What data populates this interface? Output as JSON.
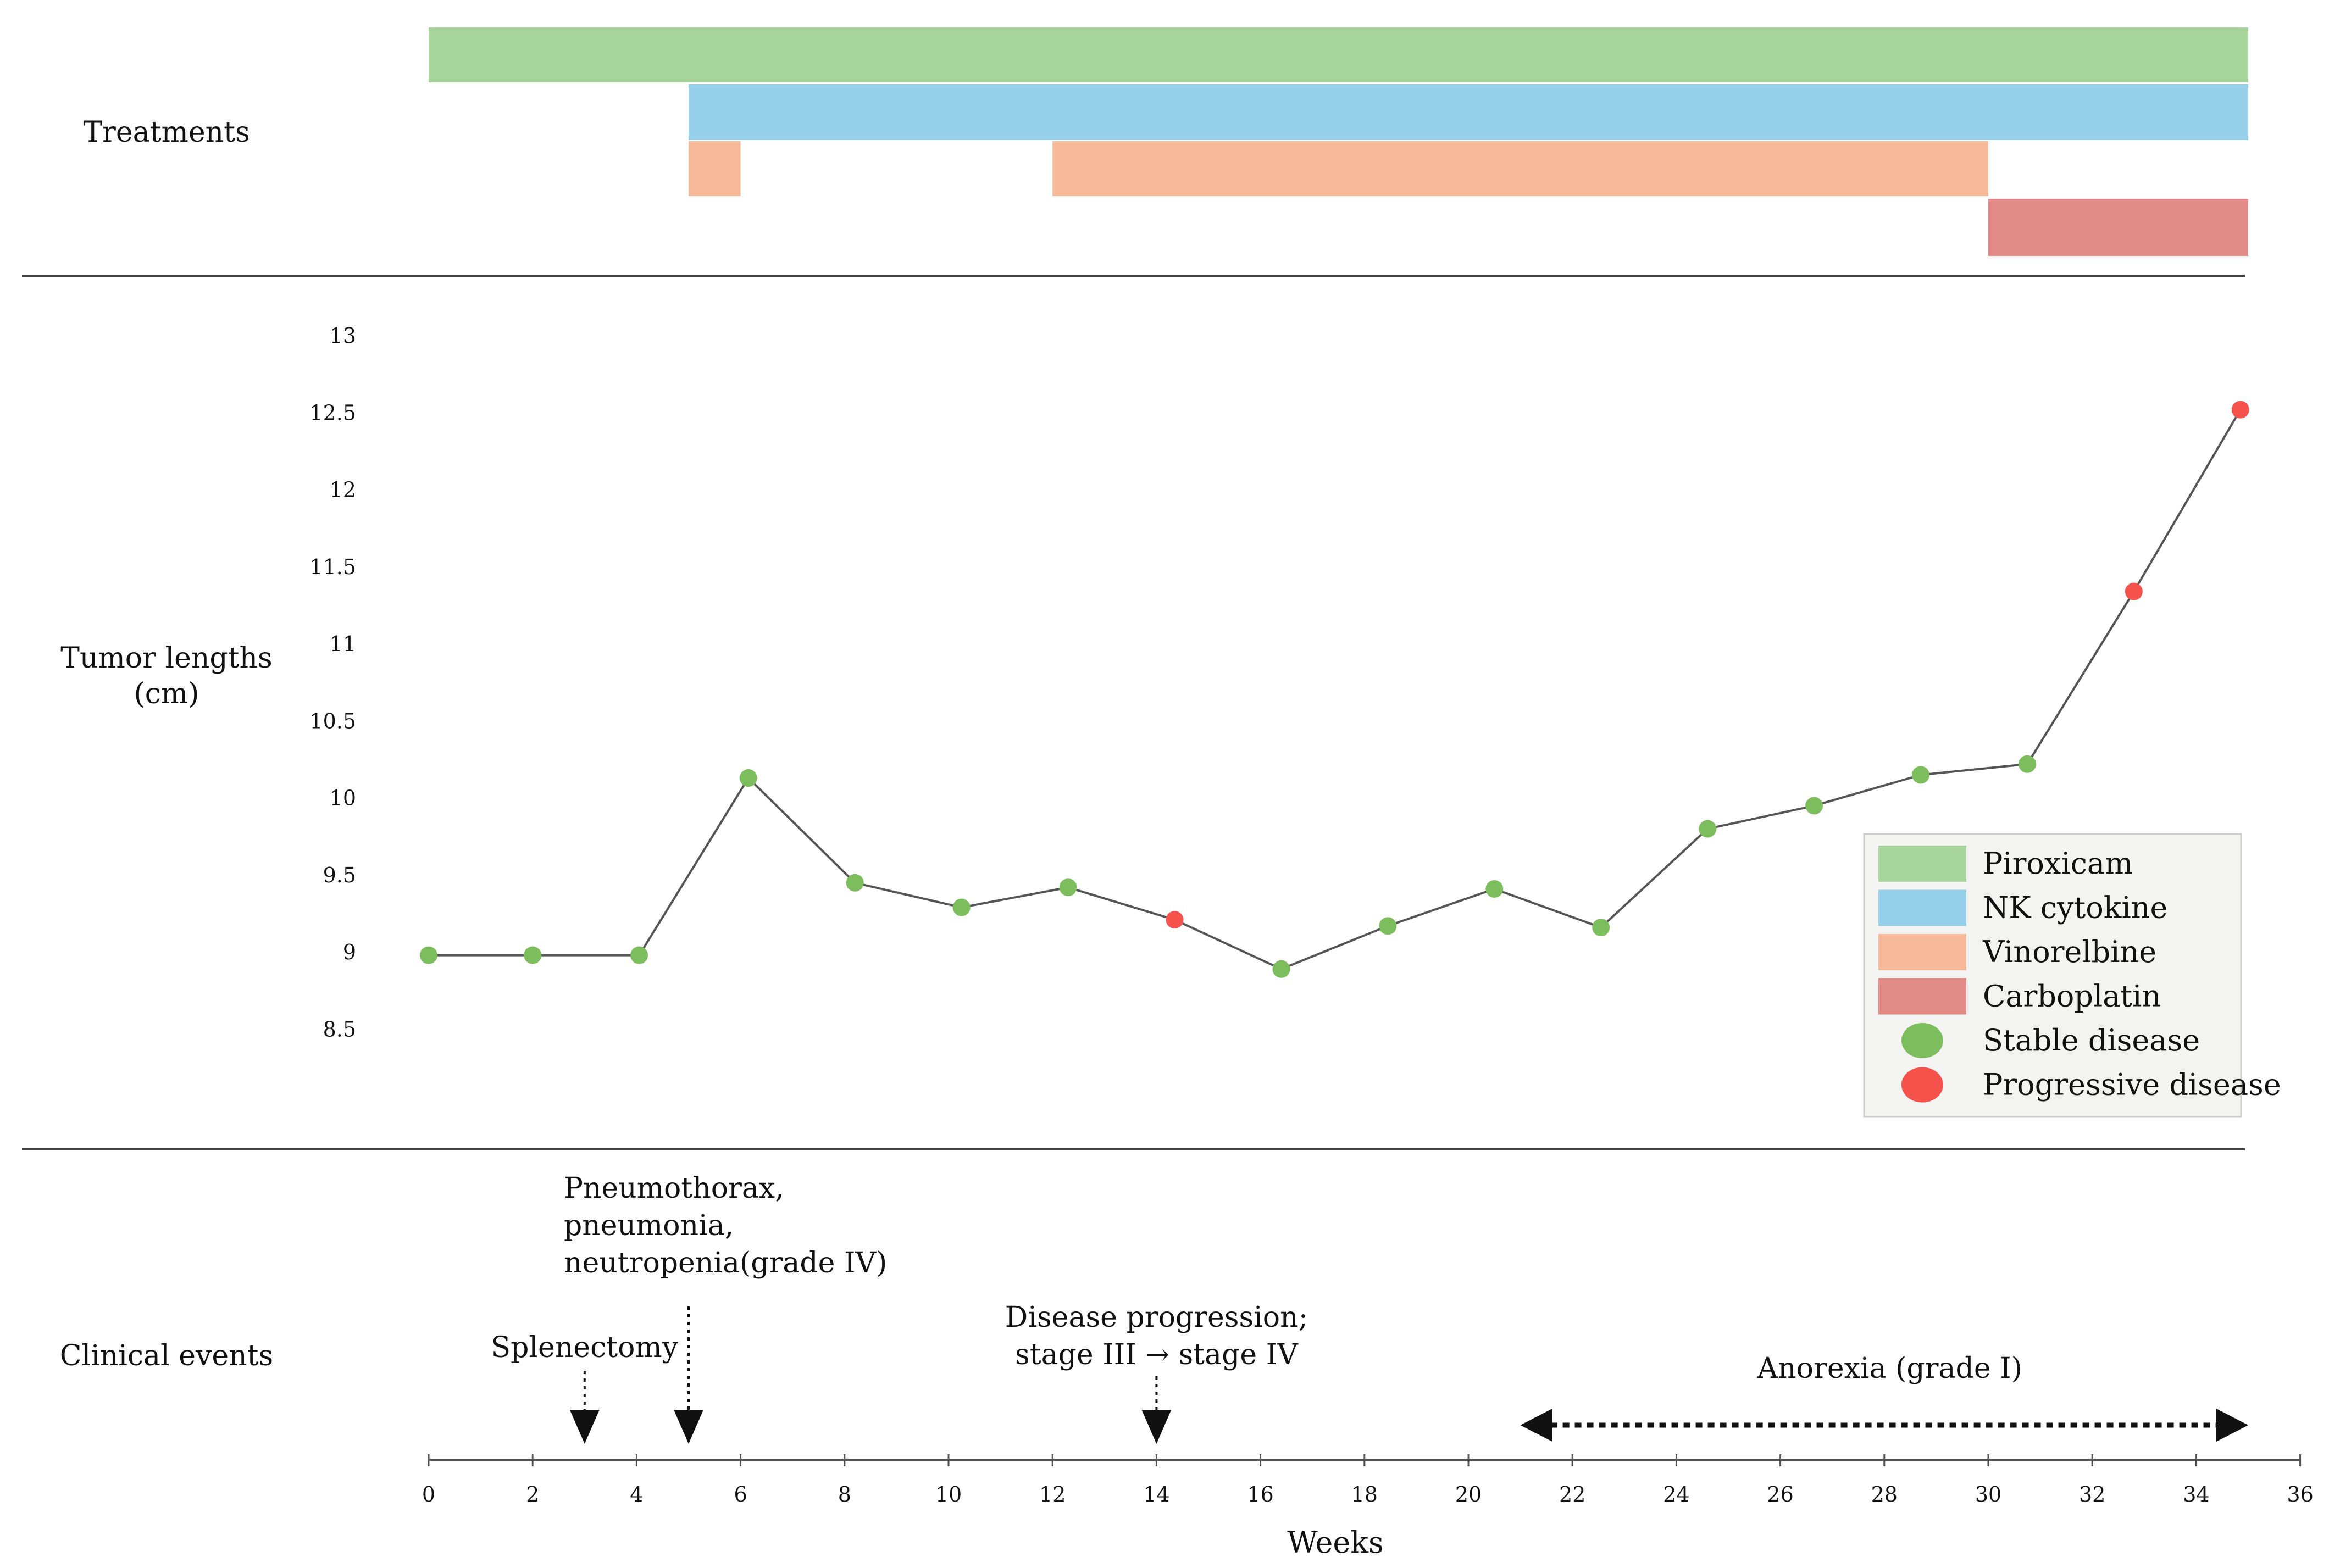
{
  "chart_data": {
    "type": "line",
    "sections": {
      "treatments_label": "Treatments",
      "tumor_label_line1": "Tumor lengths",
      "tumor_label_line2": "(cm)",
      "events_label": "Clinical events"
    },
    "treatments": [
      {
        "name": "Piroxicam",
        "color": "#a8d59b",
        "row": 0,
        "start": 0,
        "end": 35
      },
      {
        "name": "NK cytokine",
        "color": "#96cfe9",
        "row": 1,
        "start": 5,
        "end": 35
      },
      {
        "name": "Vinorelbine",
        "color": "#f6b99a",
        "row": 2,
        "start": 5,
        "end": 6
      },
      {
        "name": "Vinorelbine",
        "color": "#f6b99a",
        "row": 2,
        "start": 12,
        "end": 30
      },
      {
        "name": "Carboplatin",
        "color": "#e28a86",
        "row": 3,
        "start": 30,
        "end": 35
      }
    ],
    "tumor_series": {
      "name": "Tumor lengths",
      "line_color": "#555555",
      "points": [
        {
          "x": 0,
          "y": 8.98,
          "status": "stable"
        },
        {
          "x": 2,
          "y": 8.98,
          "status": "stable"
        },
        {
          "x": 4.05,
          "y": 8.98,
          "status": "stable"
        },
        {
          "x": 6.15,
          "y": 10.13,
          "status": "stable"
        },
        {
          "x": 8.2,
          "y": 9.45,
          "status": "stable"
        },
        {
          "x": 10.25,
          "y": 9.29,
          "status": "stable"
        },
        {
          "x": 12.3,
          "y": 9.42,
          "status": "stable"
        },
        {
          "x": 14.35,
          "y": 9.21,
          "status": "progressive"
        },
        {
          "x": 16.4,
          "y": 8.89,
          "status": "stable"
        },
        {
          "x": 18.45,
          "y": 9.17,
          "status": "stable"
        },
        {
          "x": 20.5,
          "y": 9.41,
          "status": "stable"
        },
        {
          "x": 22.55,
          "y": 9.16,
          "status": "stable"
        },
        {
          "x": 24.6,
          "y": 9.8,
          "status": "stable"
        },
        {
          "x": 26.65,
          "y": 9.95,
          "status": "stable"
        },
        {
          "x": 28.7,
          "y": 10.15,
          "status": "stable"
        },
        {
          "x": 30.75,
          "y": 10.22,
          "status": "stable"
        },
        {
          "x": 32.8,
          "y": 11.34,
          "status": "progressive"
        },
        {
          "x": 34.85,
          "y": 12.52,
          "status": "progressive"
        }
      ]
    },
    "status_colors": {
      "stable": "#7cbd5e",
      "progressive": "#f4524a"
    },
    "y_axis": {
      "range": [
        8.0,
        13.3
      ],
      "ticks": [
        8.5,
        9,
        9.5,
        10,
        10.5,
        11,
        11.5,
        12,
        12.5,
        13
      ],
      "tick_labels": [
        "8.5",
        "9",
        "9.5",
        "10",
        "10.5",
        "11",
        "11.5",
        "12",
        "12.5",
        "13"
      ]
    },
    "x_axis": {
      "label": "Weeks",
      "range": [
        0,
        36
      ],
      "ticks": [
        0,
        2,
        4,
        6,
        8,
        10,
        12,
        14,
        16,
        18,
        20,
        22,
        24,
        26,
        28,
        30,
        32,
        34,
        36
      ],
      "tick_labels": [
        "0",
        "2",
        "4",
        "6",
        "8",
        "10",
        "12",
        "14",
        "16",
        "18",
        "20",
        "22",
        "24",
        "26",
        "28",
        "30",
        "32",
        "34",
        "36"
      ]
    },
    "legend": {
      "placement": "right",
      "items": [
        {
          "label": "Piroxicam",
          "kind": "rect",
          "color": "#a8d59b"
        },
        {
          "label": "NK cytokine",
          "kind": "rect",
          "color": "#96cfe9"
        },
        {
          "label": "Vinorelbine",
          "kind": "rect",
          "color": "#f6b99a"
        },
        {
          "label": "Carboplatin",
          "kind": "rect",
          "color": "#e28a86"
        },
        {
          "label": "Stable disease",
          "kind": "dot",
          "color": "#7cbd5e"
        },
        {
          "label": "Progressive disease",
          "kind": "dot",
          "color": "#f4524a"
        }
      ]
    },
    "clinical_events": [
      {
        "week": 3,
        "lines": [
          "Splenectomy"
        ],
        "text_align": "middle",
        "text_anchor_week": 3
      },
      {
        "week": 5,
        "lines": [
          "Pneumothorax,",
          "pneumonia,",
          "neutropenia(grade IV)"
        ],
        "text_align": "start",
        "text_anchor_week": 2.6
      },
      {
        "week": 14,
        "lines": [
          "Disease progression;",
          "stage III  → stage IV"
        ],
        "text_align": "middle",
        "text_anchor_week": 14
      }
    ],
    "duration_events": [
      {
        "start": 21,
        "end": 35,
        "label": "Anorexia (grade I)"
      }
    ]
  }
}
